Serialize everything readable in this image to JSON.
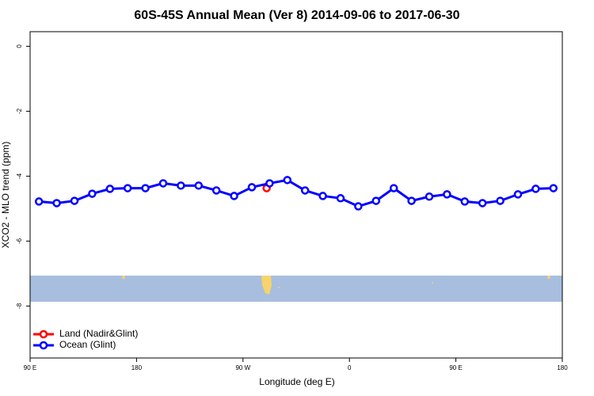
{
  "chart_data": {
    "type": "line",
    "title": "60S-45S Annual Mean (Ver 8)   2014-09-06 to 2017-06-30",
    "x_label": "Longitude (deg E)",
    "y_label": "XCO2 - MLO trend (ppm)",
    "xlim": [
      90,
      540
    ],
    "ylim": [
      -9.6,
      0.45
    ],
    "xticks": [
      {
        "value": 90,
        "label": "90 E"
      },
      180,
      {
        "value": 270,
        "label": "90 W"
      },
      {
        "value": 360,
        "label": "0"
      },
      {
        "value": 450,
        "label": "90 E"
      },
      {
        "value": 540,
        "label": "180"
      }
    ],
    "yticks": [
      0,
      -2,
      -4,
      -6,
      -8
    ],
    "legend": "bottom-left",
    "series": [
      {
        "name": "Land (Nadir&Glint)",
        "color": "#ff0000",
        "x": [
          290
        ],
        "values": [
          -4.37
        ]
      },
      {
        "name": "Ocean (Glint)",
        "color": "#0000ff",
        "x": [
          97.5,
          112.5,
          127.5,
          142.5,
          157.5,
          172.5,
          187.5,
          202.5,
          217.5,
          232.5,
          247.5,
          262.5,
          277.5,
          292.5,
          307.5,
          322.5,
          337.5,
          352.5,
          367.5,
          382.5,
          397.5,
          412.5,
          427.5,
          442.5,
          457.5,
          472.5,
          487.5,
          502.5,
          517.5,
          532.5
        ],
        "values": [
          -4.78,
          -4.83,
          -4.76,
          -4.54,
          -4.39,
          -4.37,
          -4.37,
          -4.22,
          -4.29,
          -4.29,
          -4.44,
          -4.61,
          -4.34,
          -4.22,
          -4.12,
          -4.44,
          -4.61,
          -4.68,
          -4.93,
          -4.76,
          -4.37,
          -4.76,
          -4.63,
          -4.56,
          -4.78,
          -4.83,
          -4.76,
          -4.56,
          -4.39,
          -4.37
        ]
      }
    ]
  }
}
